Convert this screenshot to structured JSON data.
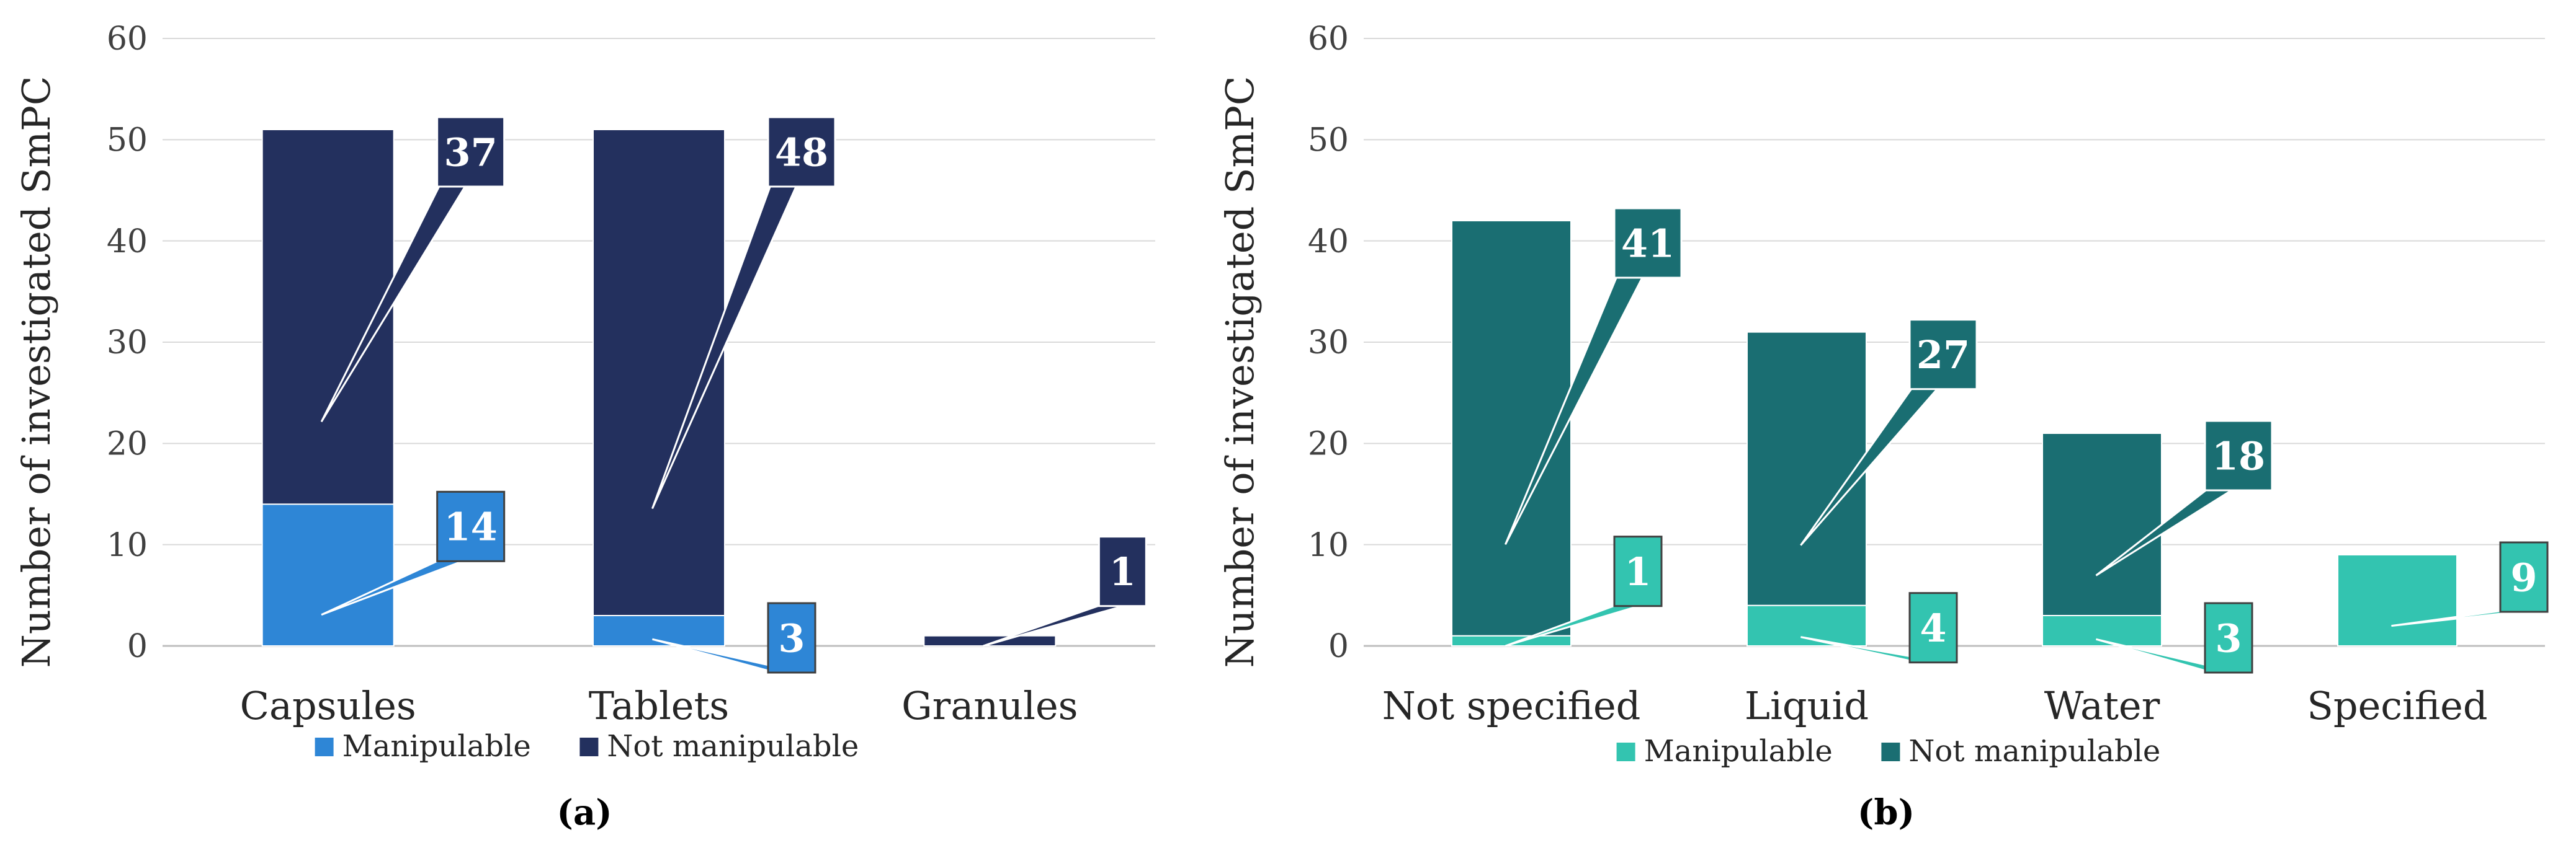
{
  "chart_data": [
    {
      "type": "bar",
      "stacked": true,
      "panel_label": "(a)",
      "title": "",
      "xlabel": "",
      "ylabel": "Number of investigated SmPC",
      "ylim": [
        0,
        60
      ],
      "yticks": [
        0,
        10,
        20,
        30,
        40,
        50,
        60
      ],
      "grid": true,
      "legend_position": "bottom",
      "categories": [
        "Capsules",
        "Tablets",
        "Granules"
      ],
      "series": [
        {
          "name": "Manipulable",
          "values": [
            14,
            3,
            0
          ],
          "color": "#2E86D6"
        },
        {
          "name": "Not manipulable",
          "values": [
            37,
            48,
            1
          ],
          "color": "#23305E"
        }
      ],
      "callouts": [
        {
          "category": "Capsules",
          "series": "Not manipulable",
          "label": "37"
        },
        {
          "category": "Capsules",
          "series": "Manipulable",
          "label": "14"
        },
        {
          "category": "Tablets",
          "series": "Not manipulable",
          "label": "48"
        },
        {
          "category": "Tablets",
          "series": "Manipulable",
          "label": "3"
        },
        {
          "category": "Granules",
          "series": "Not manipulable",
          "label": "1"
        }
      ]
    },
    {
      "type": "bar",
      "stacked": true,
      "panel_label": "(b)",
      "title": "",
      "xlabel": "",
      "ylabel": "Number of investigated SmPC",
      "ylim": [
        0,
        60
      ],
      "yticks": [
        0,
        10,
        20,
        30,
        40,
        50,
        60
      ],
      "grid": true,
      "legend_position": "bottom",
      "categories": [
        "Not specified",
        "Liquid",
        "Water",
        "Specified"
      ],
      "series": [
        {
          "name": "Manipulable",
          "values": [
            1,
            4,
            3,
            9
          ],
          "color": "#33C4B0"
        },
        {
          "name": "Not manipulable",
          "values": [
            41,
            27,
            18,
            0
          ],
          "color": "#1A6E72"
        }
      ],
      "callouts": [
        {
          "category": "Not specified",
          "series": "Not manipulable",
          "label": "41"
        },
        {
          "category": "Not specified",
          "series": "Manipulable",
          "label": "1"
        },
        {
          "category": "Liquid",
          "series": "Not manipulable",
          "label": "27"
        },
        {
          "category": "Liquid",
          "series": "Manipulable",
          "label": "4"
        },
        {
          "category": "Water",
          "series": "Not manipulable",
          "label": "18"
        },
        {
          "category": "Water",
          "series": "Manipulable",
          "label": "3"
        },
        {
          "category": "Specified",
          "series": "Manipulable",
          "label": "9"
        }
      ]
    }
  ]
}
